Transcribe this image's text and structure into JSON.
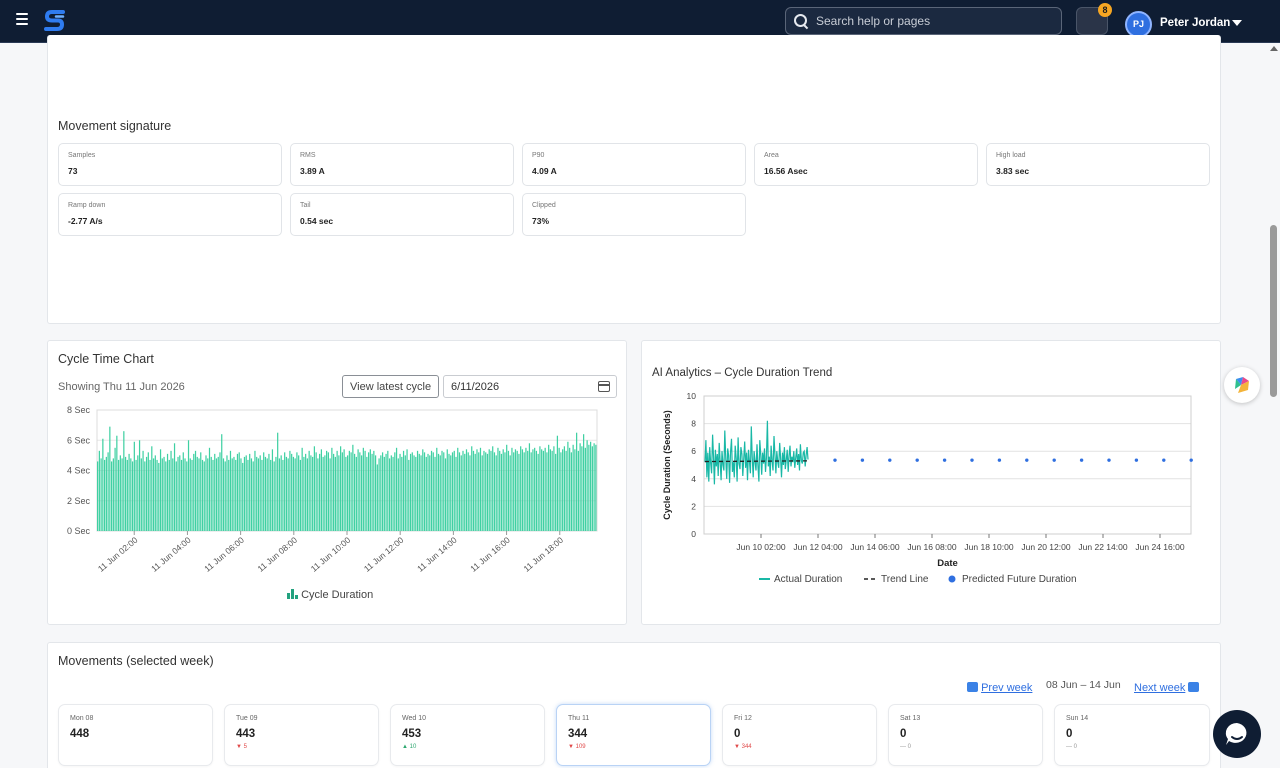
{
  "header": {
    "search_placeholder": "Search help or pages",
    "notification_count": "8",
    "user_initials": "PJ",
    "user_name": "Peter Jordan"
  },
  "signature": {
    "title": "Movement signature",
    "metrics": [
      {
        "label": "Samples",
        "value": "73"
      },
      {
        "label": "RMS",
        "value": "3.89 A"
      },
      {
        "label": "P90",
        "value": "4.09 A"
      },
      {
        "label": "Area",
        "value": "16.56 Asec"
      },
      {
        "label": "High load",
        "value": "3.83 sec"
      },
      {
        "label": "Ramp down",
        "value": "-2.77 A/s"
      },
      {
        "label": "Tail",
        "value": "0.54 sec"
      },
      {
        "label": "Clipped",
        "value": "73%"
      }
    ]
  },
  "cycle_chart": {
    "title": "Cycle Time Chart",
    "showing": "Showing Thu 11 Jun 2026",
    "view_latest_label": "View latest cycle",
    "date_value": "6/11/2026"
  },
  "ai_chart": {
    "title": "AI Analytics – Cycle Duration Trend"
  },
  "movements": {
    "title": "Movements (selected week)",
    "prev_label": "Prev week",
    "next_label": "Next week",
    "range": "08 Jun – 14 Jun",
    "days": [
      {
        "name": "Mon 08",
        "value": "448",
        "delta": "",
        "dir": "none"
      },
      {
        "name": "Tue 09",
        "value": "443",
        "delta": "▼ 5",
        "dir": "down"
      },
      {
        "name": "Wed 10",
        "value": "453",
        "delta": "▲ 10",
        "dir": "up"
      },
      {
        "name": "Thu 11",
        "value": "344",
        "delta": "▼ 109",
        "dir": "down"
      },
      {
        "name": "Fri 12",
        "value": "0",
        "delta": "▼ 344",
        "dir": "down"
      },
      {
        "name": "Sat 13",
        "value": "0",
        "delta": "— 0",
        "dir": "flat"
      },
      {
        "name": "Sun 14",
        "value": "0",
        "delta": "— 0",
        "dir": "flat"
      }
    ]
  },
  "colors": {
    "topbar": "#0f1d33",
    "bar_fill": "#3fd0a2",
    "actual_line": "#19b8a6",
    "predicted_dot": "#2f6fe0"
  },
  "chart_data": [
    {
      "type": "bar",
      "ylabel": "",
      "xlabel": "",
      "ylim": [
        0,
        8
      ],
      "y_ticks": [
        "0 Sec",
        "2 Sec",
        "4 Sec",
        "6 Sec",
        "8 Sec"
      ],
      "x_tick_labels": [
        "11 Jun 02:00",
        "11 Jun 04:00",
        "11 Jun 06:00",
        "11 Jun 08:00",
        "11 Jun 10:00",
        "11 Jun 12:00",
        "11 Jun 14:00",
        "11 Jun 16:00",
        "11 Jun 18:00"
      ],
      "x_range_hours": [
        0.6,
        19.4
      ],
      "grid": true,
      "legend": {
        "position": "bottom",
        "entries": [
          "Cycle Duration"
        ]
      },
      "series": [
        {
          "name": "Cycle Duration",
          "values": [
            4.6,
            5.3,
            4.8,
            6.1,
            4.7,
            4.9,
            5.2,
            6.9,
            4.6,
            4.8,
            5.5,
            6.3,
            4.7,
            5.0,
            4.8,
            6.6,
            4.9,
            4.7,
            5.1,
            4.8,
            4.6,
            5.9,
            4.7,
            5.0,
            6.0,
            4.8,
            5.3,
            4.6,
            4.9,
            5.2,
            4.7,
            5.6,
            4.8,
            5.0,
            4.7,
            4.5,
            5.4,
            4.8,
            4.9,
            4.6,
            5.1,
            4.7,
            5.3,
            4.8,
            5.8,
            4.6,
            4.9,
            5.0,
            4.7,
            5.2,
            4.8,
            4.6,
            6.0,
            4.8,
            4.7,
            5.1,
            5.3,
            4.9,
            4.8,
            5.2,
            4.7,
            4.6,
            5.0,
            4.8,
            5.5,
            4.9,
            4.7,
            5.1,
            4.8,
            4.9,
            5.2,
            6.4,
            4.8,
            4.6,
            5.0,
            4.7,
            5.3,
            4.8,
            4.9,
            4.7,
            5.1,
            5.2,
            4.8,
            4.5,
            4.9,
            5.0,
            4.7,
            5.1,
            4.8,
            4.6,
            5.3,
            4.9,
            4.8,
            5.0,
            4.7,
            5.2,
            4.9,
            4.8,
            5.1,
            4.7,
            5.4,
            4.6,
            4.9,
            6.5,
            4.8,
            5.0,
            4.7,
            5.2,
            4.9,
            4.8,
            5.3,
            5.1,
            4.9,
            4.8,
            5.2,
            5.0,
            4.7,
            5.5,
            4.9,
            5.1,
            4.8,
            5.3,
            5.0,
            4.9,
            5.6,
            5.2,
            4.8,
            5.1,
            5.4,
            4.9,
            5.0,
            5.3,
            5.2,
            4.8,
            5.5,
            5.1,
            4.9,
            5.3,
            5.0,
            5.6,
            5.2,
            5.4,
            4.9,
            5.0,
            5.3,
            5.2,
            5.7,
            5.1,
            4.9,
            5.4,
            5.2,
            5.0,
            5.5,
            5.3,
            4.9,
            5.2,
            5.4,
            5.1,
            5.3,
            5.0,
            4.4,
            4.8,
            5.0,
            5.2,
            4.9,
            5.1,
            5.3,
            4.8,
            5.0,
            4.9,
            5.2,
            5.5,
            4.8,
            5.1,
            4.9,
            5.3,
            5.0,
            5.4,
            4.7,
            5.1,
            5.2,
            5.0,
            4.9,
            5.3,
            5.1,
            5.0,
            5.4,
            5.2,
            4.9,
            5.1,
            5.0,
            5.3,
            5.2,
            4.9,
            5.5,
            5.1,
            5.0,
            5.3,
            5.2,
            4.8,
            5.4,
            5.1,
            5.0,
            5.2,
            5.3,
            4.9,
            5.5,
            5.2,
            5.0,
            5.3,
            5.1,
            5.4,
            5.2,
            5.0,
            5.6,
            5.3,
            5.1,
            5.4,
            5.2,
            5.5,
            5.0,
            5.3,
            5.2,
            5.1,
            5.4,
            5.3,
            5.6,
            5.2,
            5.0,
            5.5,
            5.3,
            5.1,
            5.4,
            5.2,
            5.7,
            5.3,
            5.0,
            5.5,
            5.2,
            5.4,
            5.3,
            5.1,
            5.6,
            5.4,
            5.2,
            5.5,
            5.3,
            5.8,
            5.2,
            5.4,
            5.5,
            5.3,
            5.1,
            5.6,
            5.4,
            5.3,
            5.5,
            5.2,
            5.7,
            5.4,
            5.3,
            5.6,
            5.1,
            6.3,
            5.5,
            5.2,
            5.4,
            5.6,
            5.3,
            5.9,
            5.5,
            5.2,
            5.7,
            5.4,
            6.5,
            5.3,
            5.8,
            5.6,
            6.4,
            5.5,
            6.0,
            5.7,
            5.9,
            5.6,
            5.8,
            5.7
          ]
        }
      ]
    },
    {
      "type": "line",
      "title": "AI Analytics – Cycle Duration Trend",
      "xlabel": "Date",
      "ylabel": "Cycle Duration (Seconds)",
      "ylim": [
        0,
        10
      ],
      "y_ticks": [
        0,
        2,
        4,
        6,
        8,
        10
      ],
      "x_tick_labels": [
        "Jun 10 02:00",
        "Jun 12 04:00",
        "Jun 14 06:00",
        "Jun 16 08:00",
        "Jun 18 10:00",
        "Jun 20 12:00",
        "Jun 22 14:00",
        "Jun 24 16:00"
      ],
      "grid": true,
      "legend": {
        "position": "bottom",
        "entries": [
          "Actual Duration",
          "Trend Line",
          "Predicted Future Duration"
        ]
      },
      "series": [
        {
          "name": "Actual Duration",
          "values": [
            5.2,
            6.8,
            4.1,
            5.9,
            3.8,
            6.3,
            5.1,
            4.4,
            7.2,
            5.6,
            3.6,
            6.1,
            4.9,
            5.8,
            4.2,
            6.6,
            5.3,
            3.9,
            6.0,
            5.0,
            4.6,
            7.5,
            5.4,
            4.0,
            6.2,
            5.7,
            3.7,
            5.9,
            6.9,
            4.5,
            5.2,
            4.1,
            6.4,
            5.5,
            3.8,
            7.0,
            5.1,
            4.7,
            6.3,
            5.8,
            4.2,
            5.4,
            6.7,
            4.8,
            5.9,
            3.9,
            6.1,
            5.3,
            4.4,
            7.8,
            5.6,
            4.1,
            6.0,
            5.2,
            4.6,
            6.5,
            5.0,
            3.8,
            6.8,
            5.7,
            4.3,
            5.9,
            5.1,
            6.2,
            4.5,
            5.5,
            8.2,
            4.9,
            5.6,
            4.2,
            6.4,
            5.3,
            4.6,
            7.1,
            5.8,
            4.4,
            6.0,
            5.2,
            4.8,
            6.6,
            5.5,
            4.1,
            5.9,
            5.0,
            6.3,
            4.7,
            5.4,
            6.1,
            4.5,
            5.7,
            6.4,
            4.9,
            5.6,
            5.2,
            6.0,
            4.8,
            5.5,
            6.2,
            5.0,
            5.8,
            4.6,
            6.5,
            5.3,
            5.1,
            5.9,
            6.0,
            4.9,
            5.7,
            6.3,
            5.4
          ],
          "x_range": [
            "Jun 9",
            "Jun 12"
          ]
        },
        {
          "name": "Trend Line",
          "values": [
            5.25,
            5.3
          ]
        },
        {
          "name": "Predicted Future Duration",
          "values": [
            5.35,
            5.35,
            5.35,
            5.35,
            5.35,
            5.35,
            5.35,
            5.35,
            5.35,
            5.35,
            5.35,
            5.35,
            5.35,
            5.35
          ]
        }
      ]
    }
  ]
}
